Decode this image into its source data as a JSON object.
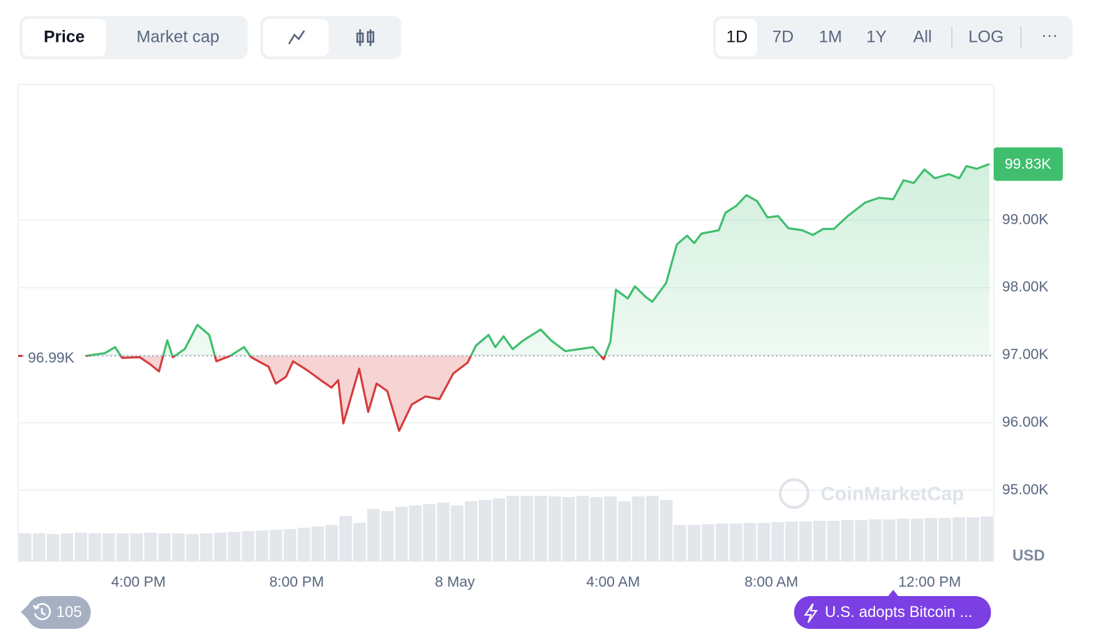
{
  "toolbar": {
    "views": [
      "Price",
      "Market cap"
    ],
    "ranges": [
      "1D",
      "7D",
      "1M",
      "1Y",
      "All"
    ],
    "scale": "LOG",
    "more": "···"
  },
  "chart_data": {
    "type": "line",
    "x": [
      -9.33,
      -8.85,
      -8.59,
      -8.41,
      -7.97,
      -7.71,
      -7.48,
      -7.27,
      -7.13,
      -6.83,
      -6.51,
      -6.21,
      -6.03,
      -5.68,
      -5.33,
      -5.15,
      -4.71,
      -4.53,
      -4.27,
      -4.09,
      -3.74,
      -3.39,
      -3.12,
      -2.95,
      -2.82,
      -2.68,
      -2.42,
      -2.19,
      -1.98,
      -1.71,
      -1.41,
      -1.09,
      -0.74,
      -0.39,
      -0.04,
      0.32,
      0.53,
      0.85,
      1.02,
      1.23,
      1.46,
      1.73,
      2.17,
      2.43,
      2.79,
      3.14,
      3.49,
      3.76,
      3.93,
      4.07,
      4.37,
      4.55,
      4.81,
      4.99,
      5.34,
      5.61,
      5.87,
      6.05,
      6.23,
      6.67,
      6.84,
      7.11,
      7.37,
      7.64,
      7.9,
      8.17,
      8.43,
      8.78,
      9.05,
      9.31,
      9.58,
      9.93,
      10.37,
      10.72,
      11.08,
      11.34,
      11.6,
      11.87,
      12.13,
      12.49,
      12.75,
      12.93,
      13.19,
      13.51
    ],
    "series": [
      {
        "name": "Price",
        "color_up": "#3fbe6e",
        "color_down": "#d63b3b",
        "values": [
          96990,
          97030,
          97120,
          96960,
          96970,
          96870,
          96760,
          97220,
          96970,
          97090,
          97450,
          97300,
          96910,
          96990,
          97120,
          96970,
          96830,
          96580,
          96680,
          96910,
          96780,
          96630,
          96520,
          96630,
          95990,
          96270,
          96800,
          96160,
          96580,
          96470,
          95880,
          96270,
          96390,
          96350,
          96730,
          96890,
          97140,
          97300,
          97120,
          97280,
          97090,
          97220,
          97380,
          97220,
          97060,
          97090,
          97120,
          96940,
          97200,
          97970,
          97840,
          98020,
          97870,
          97790,
          98070,
          98640,
          98770,
          98660,
          98800,
          98850,
          99110,
          99210,
          99370,
          99280,
          99040,
          99060,
          98880,
          98850,
          98780,
          98870,
          98870,
          99060,
          99260,
          99330,
          99310,
          99590,
          99550,
          99750,
          99620,
          99680,
          99620,
          99800,
          99760,
          99830
        ]
      }
    ],
    "reference": 96990,
    "reference_label": "96.99K",
    "last_label": "99.83K",
    "xlim": [
      -11.04,
      13.62
    ],
    "xticks": [
      {
        "value": -8,
        "label": "4:00 PM"
      },
      {
        "value": -4,
        "label": "8:00 PM"
      },
      {
        "value": 0,
        "label": "8 May"
      },
      {
        "value": 4,
        "label": "4:00 AM"
      },
      {
        "value": 8,
        "label": "8:00 AM"
      },
      {
        "value": 12,
        "label": "12:00 PM"
      }
    ],
    "ylim": [
      93950,
      101010
    ],
    "yticks": [
      {
        "value": 95000,
        "label": "95.00K"
      },
      {
        "value": 96000,
        "label": "96.00K"
      },
      {
        "value": 97000,
        "label": "97.00K"
      },
      {
        "value": 98000,
        "label": "98.00K"
      },
      {
        "value": 99000,
        "label": "99.00K"
      }
    ],
    "grid": true,
    "currency": "USD",
    "watermark": "CoinMarketCap",
    "volume": {
      "lim": [
        0,
        100
      ],
      "color": "#e3e6eb",
      "values": [
        40,
        40,
        39,
        40,
        41,
        40,
        40,
        40,
        40,
        41,
        40,
        40,
        39,
        40,
        41,
        42,
        43,
        44,
        45,
        46,
        48,
        50,
        52,
        65,
        55,
        75,
        72,
        78,
        80,
        82,
        84,
        80,
        86,
        88,
        90,
        94,
        94,
        94,
        93,
        92,
        94,
        92,
        93,
        86,
        93,
        94,
        88,
        52,
        52,
        53,
        54,
        54,
        55,
        55,
        56,
        57,
        57,
        58,
        58,
        59,
        59,
        60,
        60,
        61,
        61,
        62,
        62,
        63,
        63,
        64
      ]
    }
  },
  "footer": {
    "history_count": "105",
    "news": "U.S. adopts Bitcoin ..."
  }
}
